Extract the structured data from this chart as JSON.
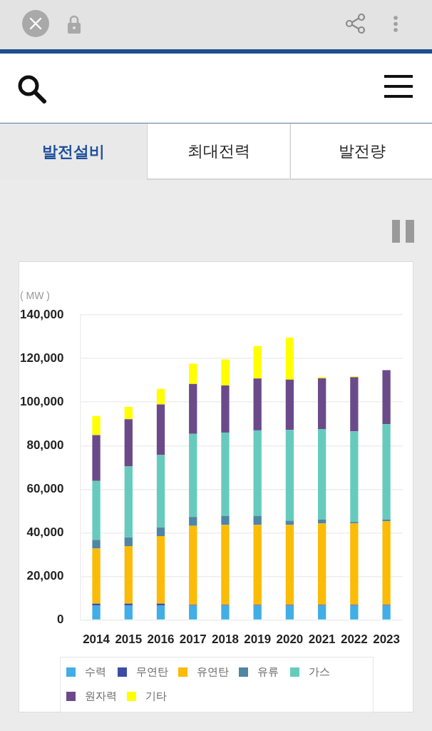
{
  "chart_data": {
    "type": "bar",
    "stacked": true,
    "title": "발전설비",
    "annotations": [
      "최대전력",
      "발전량"
    ],
    "ylabel": "( MW )",
    "categories": [
      "2014",
      "2015",
      "2016",
      "2017",
      "2018",
      "2019",
      "2020",
      "2021",
      "2022",
      "2023"
    ],
    "series": [
      {
        "name": "수력",
        "color": "#41aee6",
        "values": [
          6600,
          6600,
          6600,
          6600,
          6600,
          6600,
          6600,
          6600,
          6600,
          6600
        ]
      },
      {
        "name": "무연탄",
        "color": "#3f4ba5",
        "values": [
          1000,
          1000,
          1000,
          400,
          400,
          400,
          400,
          400,
          400,
          400
        ]
      },
      {
        "name": "유연탄",
        "color": "#fbbb06",
        "values": [
          25200,
          26300,
          30900,
          36200,
          36600,
          36600,
          36600,
          37300,
          37300,
          38300
        ]
      },
      {
        "name": "유류",
        "color": "#4f86a3",
        "values": [
          4000,
          4000,
          4000,
          4100,
          4100,
          4100,
          2000,
          1900,
          700,
          900
        ]
      },
      {
        "name": "가스",
        "color": "#66cbbd",
        "values": [
          27000,
          32500,
          33200,
          38100,
          38300,
          39300,
          41500,
          41400,
          41500,
          43600
        ]
      },
      {
        "name": "원자력",
        "color": "#6b4a8a",
        "values": [
          21000,
          21700,
          23200,
          22900,
          21600,
          23800,
          23200,
          23300,
          24900,
          24800
        ]
      },
      {
        "name": "기타",
        "color": "#ffff00",
        "values": [
          8800,
          5700,
          7100,
          9300,
          11900,
          14900,
          19200,
          500,
          400,
          null
        ]
      }
    ],
    "ylim": [
      0,
      140000
    ],
    "yticks": [
      0,
      {
        "value": 20000,
        "label": "20,000"
      },
      {
        "value": 40000,
        "label": "40,000"
      },
      {
        "value": 60000,
        "label": "60,000"
      },
      {
        "value": 80000,
        "label": "80,000"
      },
      {
        "value": 100000,
        "label": "100,000"
      },
      {
        "value": 120000,
        "label": "120,000"
      },
      {
        "value": 140000,
        "label": "140,000"
      }
    ],
    "grid": "y",
    "legend": "bottom"
  }
}
